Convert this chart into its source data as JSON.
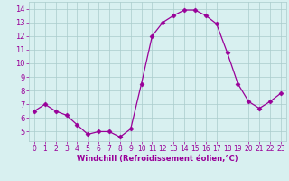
{
  "x": [
    0,
    1,
    2,
    3,
    4,
    5,
    6,
    7,
    8,
    9,
    10,
    11,
    12,
    13,
    14,
    15,
    16,
    17,
    18,
    19,
    20,
    21,
    22,
    23
  ],
  "y": [
    6.5,
    7.0,
    6.5,
    6.2,
    5.5,
    4.8,
    5.0,
    5.0,
    4.6,
    5.2,
    8.5,
    12.0,
    13.0,
    13.5,
    13.9,
    13.9,
    13.5,
    12.9,
    10.8,
    8.5,
    7.2,
    6.7,
    7.2,
    7.8
  ],
  "line_color": "#990099",
  "marker": "D",
  "marker_size": 2.5,
  "bg_color": "#d8f0f0",
  "grid_color": "#aacccc",
  "xlabel": "Windchill (Refroidissement éolien,°C)",
  "xlabel_color": "#990099",
  "tick_color": "#990099",
  "ylim": [
    4.3,
    14.5
  ],
  "xlim": [
    -0.5,
    23.5
  ],
  "yticks": [
    5,
    6,
    7,
    8,
    9,
    10,
    11,
    12,
    13,
    14
  ],
  "xticks": [
    0,
    1,
    2,
    3,
    4,
    5,
    6,
    7,
    8,
    9,
    10,
    11,
    12,
    13,
    14,
    15,
    16,
    17,
    18,
    19,
    20,
    21,
    22,
    23
  ]
}
